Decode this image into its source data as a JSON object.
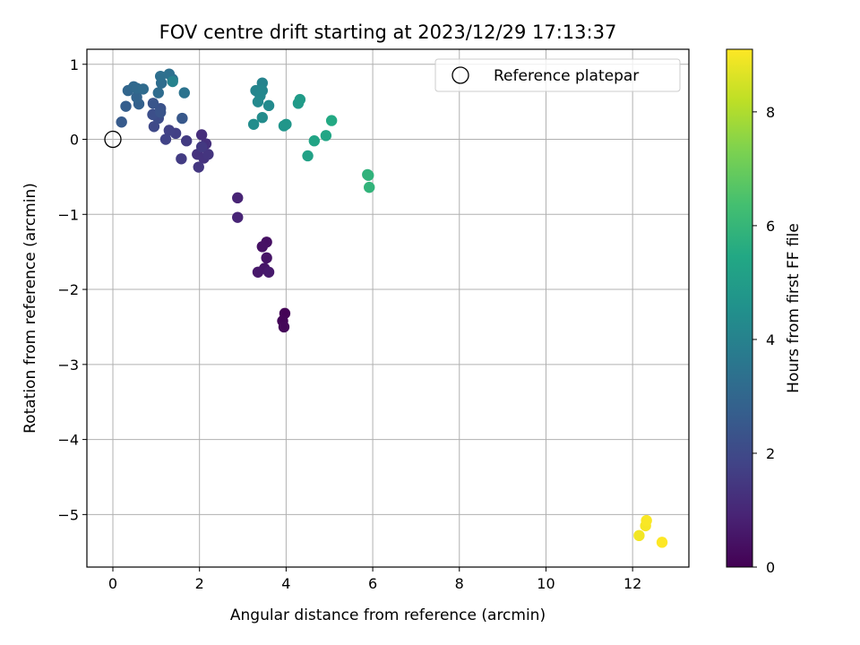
{
  "chart_data": {
    "type": "scatter",
    "title": "FOV centre drift starting at 2023/12/29 17:13:37",
    "xlabel": "Angular distance from reference (arcmin)",
    "ylabel": "Rotation from reference (arcmin)",
    "xlim": [
      -0.6,
      13.3
    ],
    "ylim": [
      -5.7,
      1.2
    ],
    "xticks": [
      0,
      2,
      4,
      6,
      8,
      10,
      12
    ],
    "yticks": [
      -5,
      -4,
      -3,
      -2,
      -1,
      0,
      1
    ],
    "xtick_labels": [
      "0",
      "2",
      "4",
      "6",
      "8",
      "10",
      "12"
    ],
    "ytick_labels": [
      "−5",
      "−4",
      "−3",
      "−2",
      "−1",
      "0",
      "1"
    ],
    "grid": true,
    "legend": {
      "placement": "upper-right",
      "label": "Reference platepar"
    },
    "reference_point": {
      "x": 0,
      "y": 0
    },
    "colorbar": {
      "label": "Hours from first FF file",
      "range": [
        0,
        9.1
      ],
      "ticks": [
        0,
        2,
        4,
        6,
        8
      ],
      "tick_labels": [
        "0",
        "2",
        "4",
        "6",
        "8"
      ],
      "colormap": "viridis"
    },
    "points": [
      {
        "x": 3.97,
        "y": -2.32,
        "c": 0.05
      },
      {
        "x": 3.92,
        "y": -2.42,
        "c": 0.1
      },
      {
        "x": 3.95,
        "y": -2.5,
        "c": 0.15
      },
      {
        "x": 3.55,
        "y": -1.37,
        "c": 0.4
      },
      {
        "x": 3.45,
        "y": -1.43,
        "c": 0.45
      },
      {
        "x": 3.55,
        "y": -1.58,
        "c": 0.5
      },
      {
        "x": 3.5,
        "y": -1.72,
        "c": 0.55
      },
      {
        "x": 3.35,
        "y": -1.77,
        "c": 0.6
      },
      {
        "x": 3.6,
        "y": -1.77,
        "c": 0.65
      },
      {
        "x": 2.88,
        "y": -0.78,
        "c": 0.9
      },
      {
        "x": 2.88,
        "y": -1.04,
        "c": 0.95
      },
      {
        "x": 2.05,
        "y": 0.06,
        "c": 1.2
      },
      {
        "x": 2.15,
        "y": -0.06,
        "c": 1.25
      },
      {
        "x": 1.95,
        "y": -0.2,
        "c": 1.3
      },
      {
        "x": 2.1,
        "y": -0.25,
        "c": 1.35
      },
      {
        "x": 2.2,
        "y": -0.2,
        "c": 1.4
      },
      {
        "x": 1.98,
        "y": -0.37,
        "c": 1.45
      },
      {
        "x": 2.05,
        "y": -0.1,
        "c": 1.5
      },
      {
        "x": 1.7,
        "y": -0.02,
        "c": 1.55
      },
      {
        "x": 1.58,
        "y": -0.26,
        "c": 1.6
      },
      {
        "x": 1.45,
        "y": 0.08,
        "c": 1.7
      },
      {
        "x": 1.3,
        "y": 0.12,
        "c": 1.75
      },
      {
        "x": 1.22,
        "y": 0.0,
        "c": 1.8
      },
      {
        "x": 0.95,
        "y": 0.17,
        "c": 2.0
      },
      {
        "x": 1.05,
        "y": 0.28,
        "c": 2.1
      },
      {
        "x": 0.92,
        "y": 0.33,
        "c": 2.2
      },
      {
        "x": 1.1,
        "y": 0.41,
        "c": 2.3
      },
      {
        "x": 1.1,
        "y": 0.36,
        "c": 2.35
      },
      {
        "x": 0.93,
        "y": 0.48,
        "c": 2.4
      },
      {
        "x": 1.6,
        "y": 0.28,
        "c": 2.5
      },
      {
        "x": 0.2,
        "y": 0.23,
        "c": 2.6
      },
      {
        "x": 0.3,
        "y": 0.44,
        "c": 2.7
      },
      {
        "x": 0.6,
        "y": 0.47,
        "c": 2.8
      },
      {
        "x": 0.55,
        "y": 0.56,
        "c": 2.9
      },
      {
        "x": 0.35,
        "y": 0.65,
        "c": 3.0
      },
      {
        "x": 0.48,
        "y": 0.7,
        "c": 3.05
      },
      {
        "x": 0.55,
        "y": 0.68,
        "c": 3.1
      },
      {
        "x": 0.7,
        "y": 0.67,
        "c": 3.15
      },
      {
        "x": 1.05,
        "y": 0.62,
        "c": 3.2
      },
      {
        "x": 1.12,
        "y": 0.75,
        "c": 3.25
      },
      {
        "x": 1.1,
        "y": 0.84,
        "c": 3.3
      },
      {
        "x": 1.3,
        "y": 0.87,
        "c": 3.35
      },
      {
        "x": 1.38,
        "y": 0.8,
        "c": 3.4
      },
      {
        "x": 1.65,
        "y": 0.62,
        "c": 3.45
      },
      {
        "x": 1.38,
        "y": 0.77,
        "c": 4.0
      },
      {
        "x": 3.45,
        "y": 0.75,
        "c": 4.05
      },
      {
        "x": 3.3,
        "y": 0.65,
        "c": 4.1
      },
      {
        "x": 3.45,
        "y": 0.65,
        "c": 4.15
      },
      {
        "x": 3.4,
        "y": 0.58,
        "c": 4.2
      },
      {
        "x": 3.35,
        "y": 0.5,
        "c": 4.25
      },
      {
        "x": 3.6,
        "y": 0.45,
        "c": 4.3
      },
      {
        "x": 3.45,
        "y": 0.29,
        "c": 4.35
      },
      {
        "x": 3.25,
        "y": 0.2,
        "c": 4.4
      },
      {
        "x": 3.95,
        "y": 0.18,
        "c": 4.7
      },
      {
        "x": 4.0,
        "y": 0.2,
        "c": 4.75
      },
      {
        "x": 4.28,
        "y": 0.48,
        "c": 4.9
      },
      {
        "x": 4.32,
        "y": 0.53,
        "c": 4.95
      },
      {
        "x": 4.5,
        "y": -0.22,
        "c": 5.2
      },
      {
        "x": 4.65,
        "y": -0.02,
        "c": 5.3
      },
      {
        "x": 4.92,
        "y": 0.05,
        "c": 5.4
      },
      {
        "x": 5.05,
        "y": 0.25,
        "c": 5.5
      },
      {
        "x": 5.88,
        "y": -0.47,
        "c": 5.8
      },
      {
        "x": 5.9,
        "y": -0.48,
        "c": 5.85
      },
      {
        "x": 5.92,
        "y": -0.64,
        "c": 5.9
      },
      {
        "x": 12.15,
        "y": -5.28,
        "c": 8.95
      },
      {
        "x": 12.3,
        "y": -5.15,
        "c": 9.0
      },
      {
        "x": 12.32,
        "y": -5.08,
        "c": 9.05
      },
      {
        "x": 12.68,
        "y": -5.37,
        "c": 9.1
      }
    ]
  }
}
